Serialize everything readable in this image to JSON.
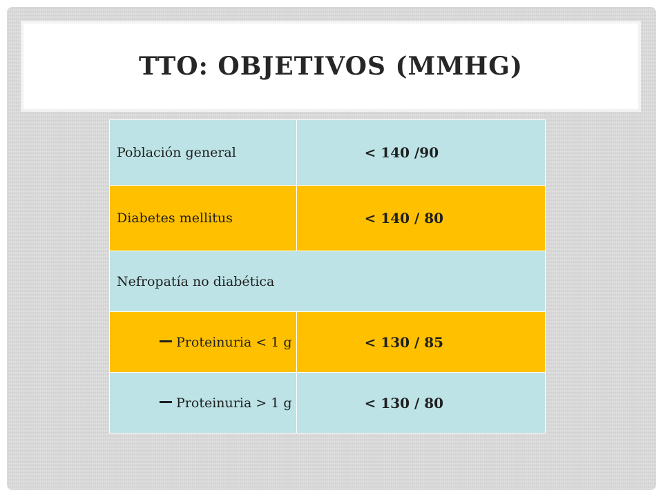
{
  "slide": {
    "title": "TTO: OBJETIVOS (MMHG)"
  },
  "colors": {
    "row_blue": "#bde3e6",
    "row_orange": "#ffc000",
    "slide_background": "#dedede"
  },
  "table": {
    "rows": [
      {
        "label": "Población general",
        "value": "< 140 /90"
      },
      {
        "label": "Diabetes mellitus",
        "value": "< 140 / 80"
      },
      {
        "label": "Nefropatía no diabética",
        "value": ""
      },
      {
        "label": "Proteinuria < 1 g",
        "value": "< 130 / 85"
      },
      {
        "label": "Proteinuria > 1 g",
        "value": "< 130 / 80"
      }
    ]
  }
}
